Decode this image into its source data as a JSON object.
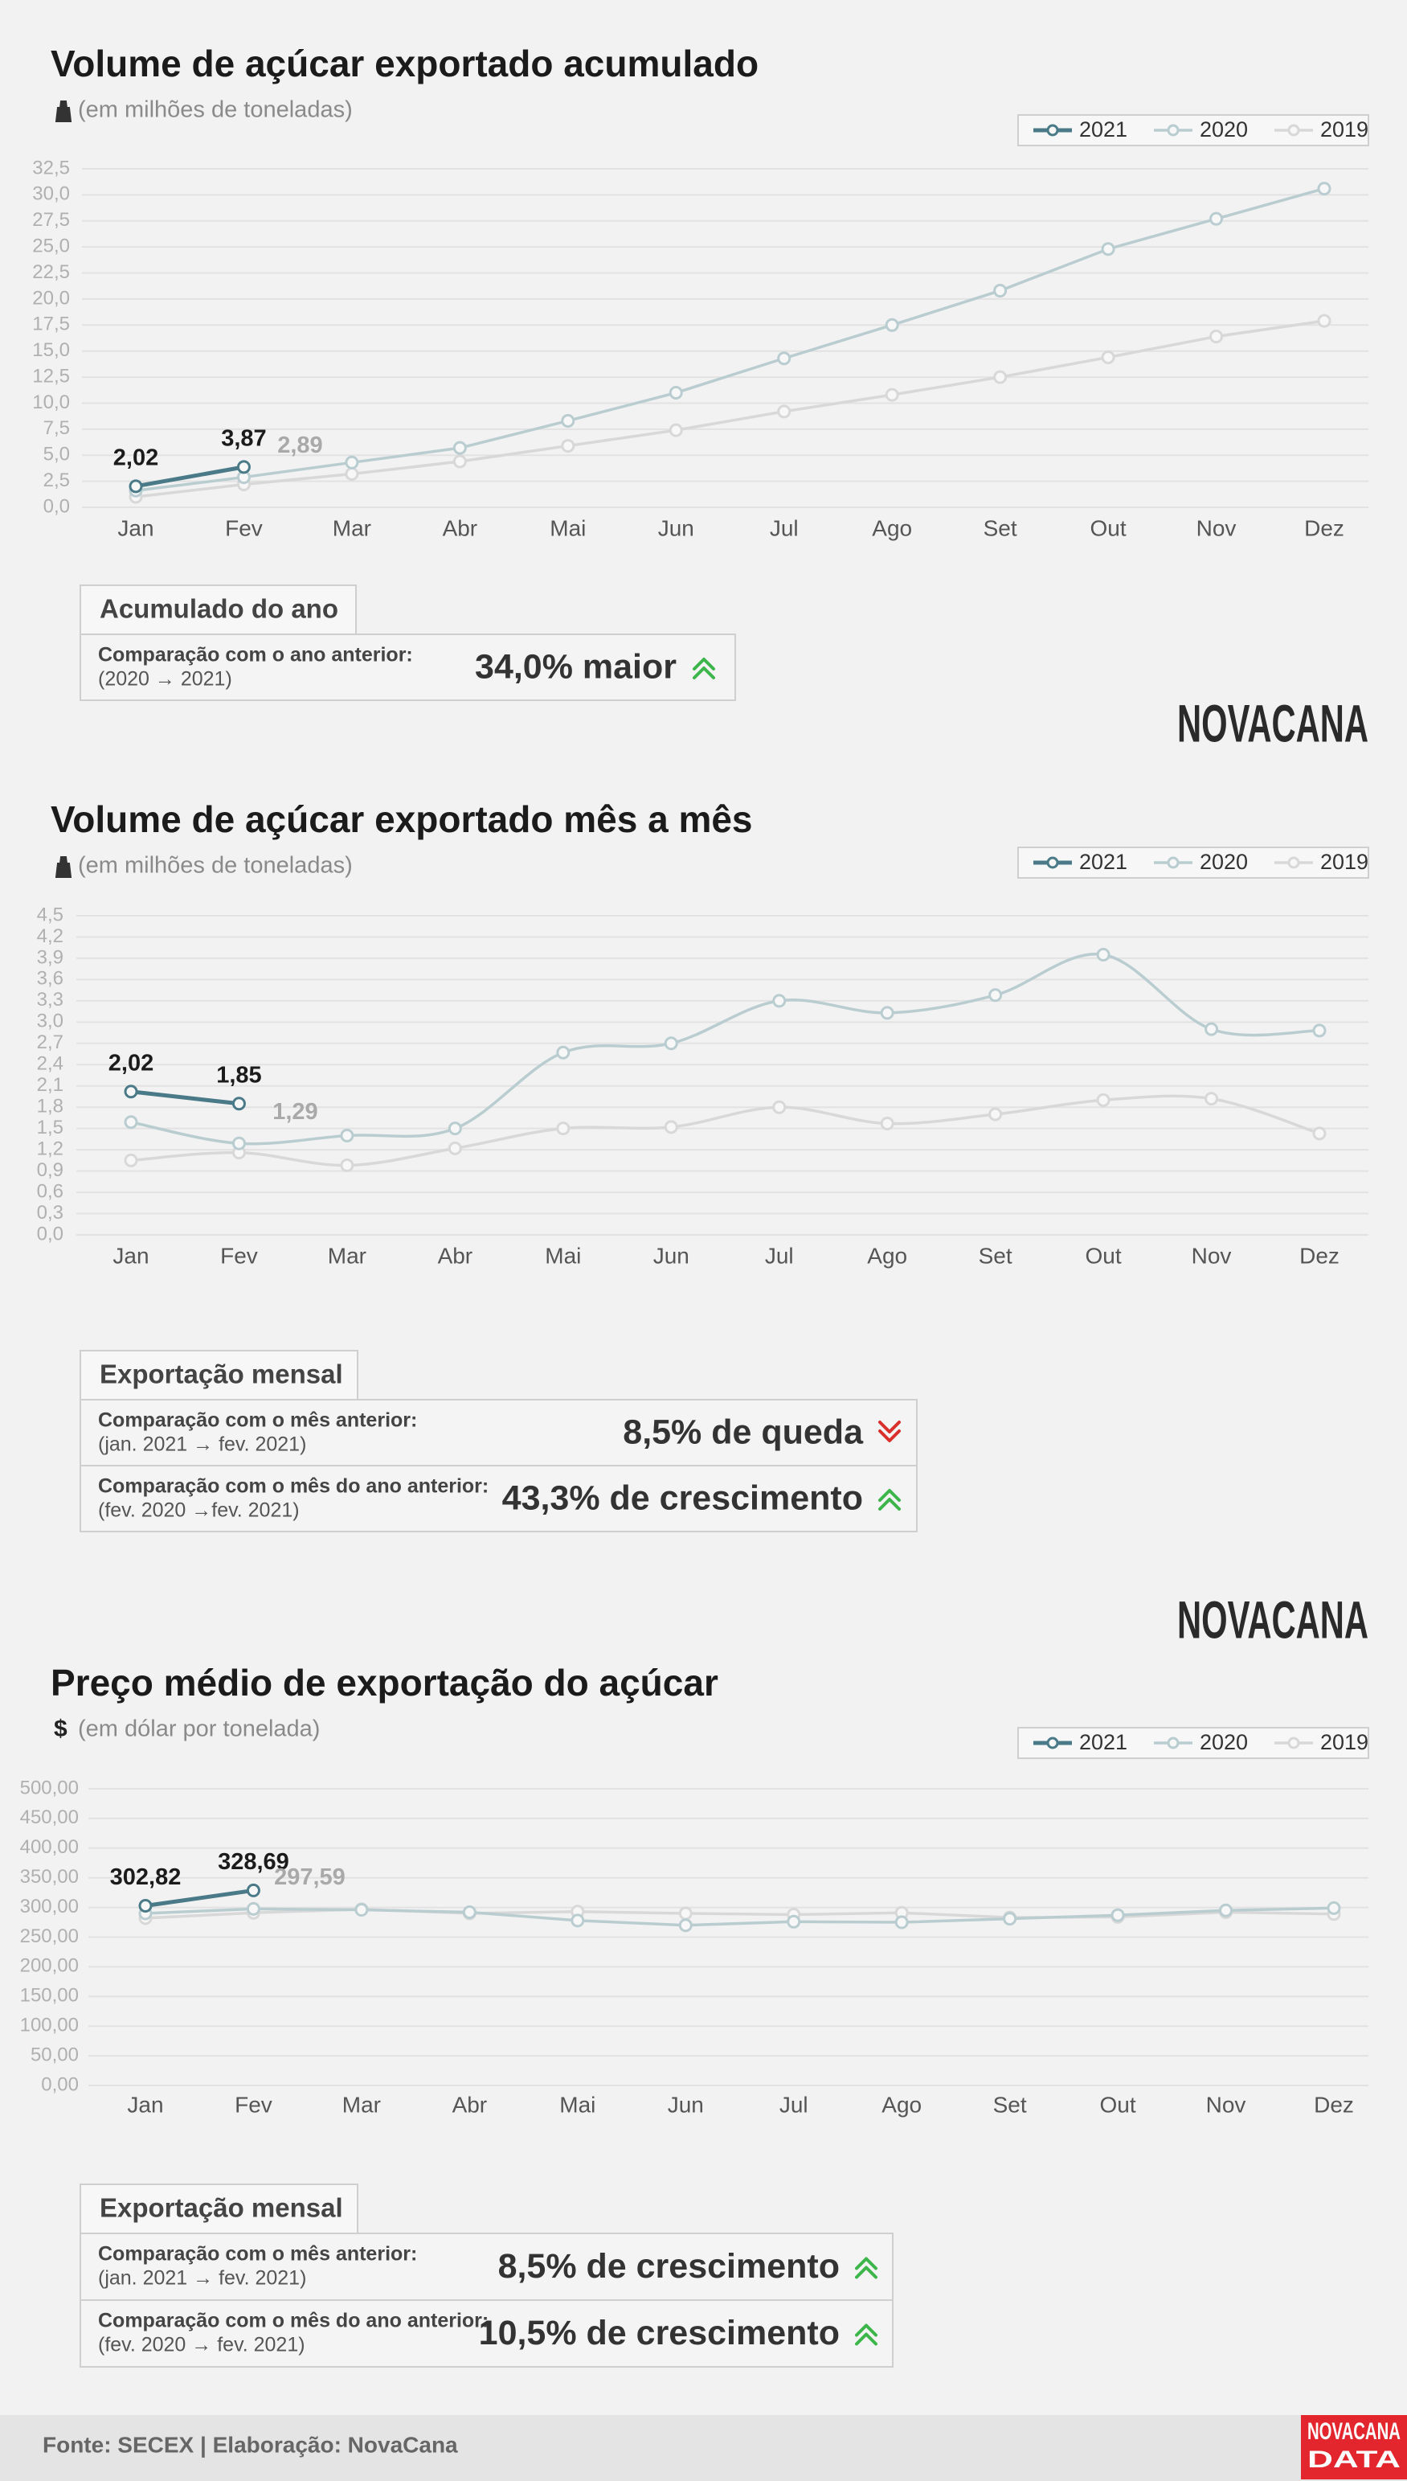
{
  "chart_data": [
    {
      "type": "line",
      "title": "Volume de açúcar exportado acumulado",
      "subtitle": "(em milhões de toneladas)",
      "categories": [
        "Jan",
        "Fev",
        "Mar",
        "Abr",
        "Mai",
        "Jun",
        "Jul",
        "Ago",
        "Set",
        "Out",
        "Nov",
        "Dez"
      ],
      "series": [
        {
          "name": "2021",
          "color": "#4a7a88",
          "values": [
            2.02,
            3.87,
            null,
            null,
            null,
            null,
            null,
            null,
            null,
            null,
            null,
            null
          ],
          "value_labels": [
            "2,02",
            "3,87",
            null,
            null,
            null,
            null,
            null,
            null,
            null,
            null,
            null,
            null
          ]
        },
        {
          "name": "2020",
          "color": "#b9cdd1",
          "values": [
            1.6,
            2.89,
            4.3,
            5.7,
            8.3,
            11.0,
            14.3,
            17.5,
            20.8,
            24.8,
            27.7,
            30.6
          ],
          "value_labels": [
            null,
            "2,89",
            null,
            null,
            null,
            null,
            null,
            null,
            null,
            null,
            null,
            null
          ]
        },
        {
          "name": "2019",
          "color": "#d8d8d8",
          "values": [
            1.0,
            2.2,
            3.2,
            4.4,
            5.9,
            7.4,
            9.2,
            10.8,
            12.5,
            14.4,
            16.4,
            17.9
          ]
        }
      ],
      "ylim": [
        0,
        32.5
      ],
      "yticks": [
        {
          "value": 0,
          "label": "0,0"
        },
        {
          "value": 2.5,
          "label": "2,5"
        },
        {
          "value": 5,
          "label": "5,0"
        },
        {
          "value": 7.5,
          "label": "7,5"
        },
        {
          "value": 10,
          "label": "10,0"
        },
        {
          "value": 12.5,
          "label": "12,5"
        },
        {
          "value": 15,
          "label": "15,0"
        },
        {
          "value": 17.5,
          "label": "17,5"
        },
        {
          "value": 20,
          "label": "20,0"
        },
        {
          "value": 22.5,
          "label": "22,5"
        },
        {
          "value": 25,
          "label": "25,0"
        },
        {
          "value": 27.5,
          "label": "27,5"
        },
        {
          "value": 30,
          "label": "30,0"
        },
        {
          "value": 32.5,
          "label": "32,5"
        }
      ],
      "grid": true,
      "smooth": false,
      "legend": "top-right"
    },
    {
      "type": "line",
      "title": "Volume de açúcar exportado mês a mês",
      "subtitle": "(em milhões de toneladas)",
      "categories": [
        "Jan",
        "Fev",
        "Mar",
        "Abr",
        "Mai",
        "Jun",
        "Jul",
        "Ago",
        "Set",
        "Out",
        "Nov",
        "Dez"
      ],
      "series": [
        {
          "name": "2021",
          "color": "#4a7a88",
          "values": [
            2.02,
            1.85,
            null,
            null,
            null,
            null,
            null,
            null,
            null,
            null,
            null,
            null
          ],
          "value_labels": [
            "2,02",
            "1,85",
            null,
            null,
            null,
            null,
            null,
            null,
            null,
            null,
            null,
            null
          ]
        },
        {
          "name": "2020",
          "color": "#b9cdd1",
          "values": [
            1.59,
            1.29,
            1.4,
            1.5,
            2.57,
            2.7,
            3.3,
            3.13,
            3.38,
            3.95,
            2.9,
            2.88
          ],
          "value_labels": [
            null,
            "1,29",
            null,
            null,
            null,
            null,
            null,
            null,
            null,
            null,
            null,
            null
          ]
        },
        {
          "name": "2019",
          "color": "#d8d8d8",
          "values": [
            1.05,
            1.16,
            0.98,
            1.22,
            1.5,
            1.52,
            1.8,
            1.57,
            1.7,
            1.9,
            1.92,
            1.43
          ]
        }
      ],
      "ylim": [
        0,
        4.5
      ],
      "yticks": [
        {
          "value": 0,
          "label": "0,0"
        },
        {
          "value": 0.3,
          "label": "0,3"
        },
        {
          "value": 0.6,
          "label": "0,6"
        },
        {
          "value": 0.9,
          "label": "0,9"
        },
        {
          "value": 1.2,
          "label": "1,2"
        },
        {
          "value": 1.5,
          "label": "1,5"
        },
        {
          "value": 1.8,
          "label": "1,8"
        },
        {
          "value": 2.1,
          "label": "2,1"
        },
        {
          "value": 2.4,
          "label": "2,4"
        },
        {
          "value": 2.7,
          "label": "2,7"
        },
        {
          "value": 3.0,
          "label": "3,0"
        },
        {
          "value": 3.3,
          "label": "3,3"
        },
        {
          "value": 3.6,
          "label": "3,6"
        },
        {
          "value": 3.9,
          "label": "3,9"
        },
        {
          "value": 4.2,
          "label": "4,2"
        },
        {
          "value": 4.5,
          "label": "4,5"
        }
      ],
      "grid": true,
      "smooth": true,
      "legend": "top-right"
    },
    {
      "type": "line",
      "title": "Preço médio de exportação do açúcar",
      "subtitle": "(em dólar por tonelada)",
      "subtitle_icon": "$",
      "categories": [
        "Jan",
        "Fev",
        "Mar",
        "Abr",
        "Mai",
        "Jun",
        "Jul",
        "Ago",
        "Set",
        "Out",
        "Nov",
        "Dez"
      ],
      "series": [
        {
          "name": "2021",
          "color": "#4a7a88",
          "values": [
            302.82,
            328.69,
            null,
            null,
            null,
            null,
            null,
            null,
            null,
            null,
            null,
            null
          ],
          "value_labels": [
            "302,82",
            "328,69",
            null,
            null,
            null,
            null,
            null,
            null,
            null,
            null,
            null,
            null
          ]
        },
        {
          "name": "2020",
          "color": "#b9cdd1",
          "values": [
            290,
            297.59,
            296,
            292,
            278,
            270,
            276,
            275,
            281,
            287,
            295,
            299
          ],
          "value_labels": [
            null,
            "297,59",
            null,
            null,
            null,
            null,
            null,
            null,
            null,
            null,
            null,
            null
          ]
        },
        {
          "name": "2019",
          "color": "#d8d8d8",
          "values": [
            282,
            291,
            297,
            290,
            293,
            290,
            288,
            291,
            283,
            284,
            292,
            289
          ]
        }
      ],
      "ylim": [
        0,
        500
      ],
      "yticks": [
        {
          "value": 0,
          "label": "0,00"
        },
        {
          "value": 50,
          "label": "50,00"
        },
        {
          "value": 100,
          "label": "100,00"
        },
        {
          "value": 150,
          "label": "150,00"
        },
        {
          "value": 200,
          "label": "200,00"
        },
        {
          "value": 250,
          "label": "250,00"
        },
        {
          "value": 300,
          "label": "300,00"
        },
        {
          "value": 350,
          "label": "350,00"
        },
        {
          "value": 400,
          "label": "400,00"
        },
        {
          "value": 450,
          "label": "450,00"
        },
        {
          "value": 500,
          "label": "500,00"
        }
      ],
      "grid": true,
      "smooth": false,
      "legend": "top-right"
    }
  ],
  "panels": [
    {
      "title": "Acumulado do ano",
      "rows": [
        {
          "label": "Comparação com o ano anterior:",
          "sublabel": "(2020 → 2021)",
          "result": "34,0% maior",
          "trend": "up"
        }
      ]
    },
    {
      "title": "Exportação mensal",
      "rows": [
        {
          "label": "Comparação com o mês anterior:",
          "sublabel": "(jan. 2021 → fev. 2021)",
          "result": "8,5% de queda",
          "trend": "down"
        },
        {
          "label": "Comparação com o mês do ano anterior:",
          "sublabel": "(fev. 2020 →fev. 2021)",
          "result": "43,3% de crescimento",
          "trend": "up"
        }
      ]
    },
    {
      "title": "Exportação mensal",
      "rows": [
        {
          "label": "Comparação com o mês anterior:",
          "sublabel": "(jan. 2021 → fev. 2021)",
          "result": "8,5% de crescimento",
          "trend": "up"
        },
        {
          "label": "Comparação com o mês do ano anterior:",
          "sublabel": "(fev. 2020 → fev. 2021)",
          "result": "10,5% de crescimento",
          "trend": "up"
        }
      ]
    }
  ],
  "brand": "NOVACANA",
  "footer": {
    "source": "Fonte: SECEX | Elaboração: NovaCana",
    "badge": [
      "NOVACANA",
      "DATA"
    ]
  }
}
